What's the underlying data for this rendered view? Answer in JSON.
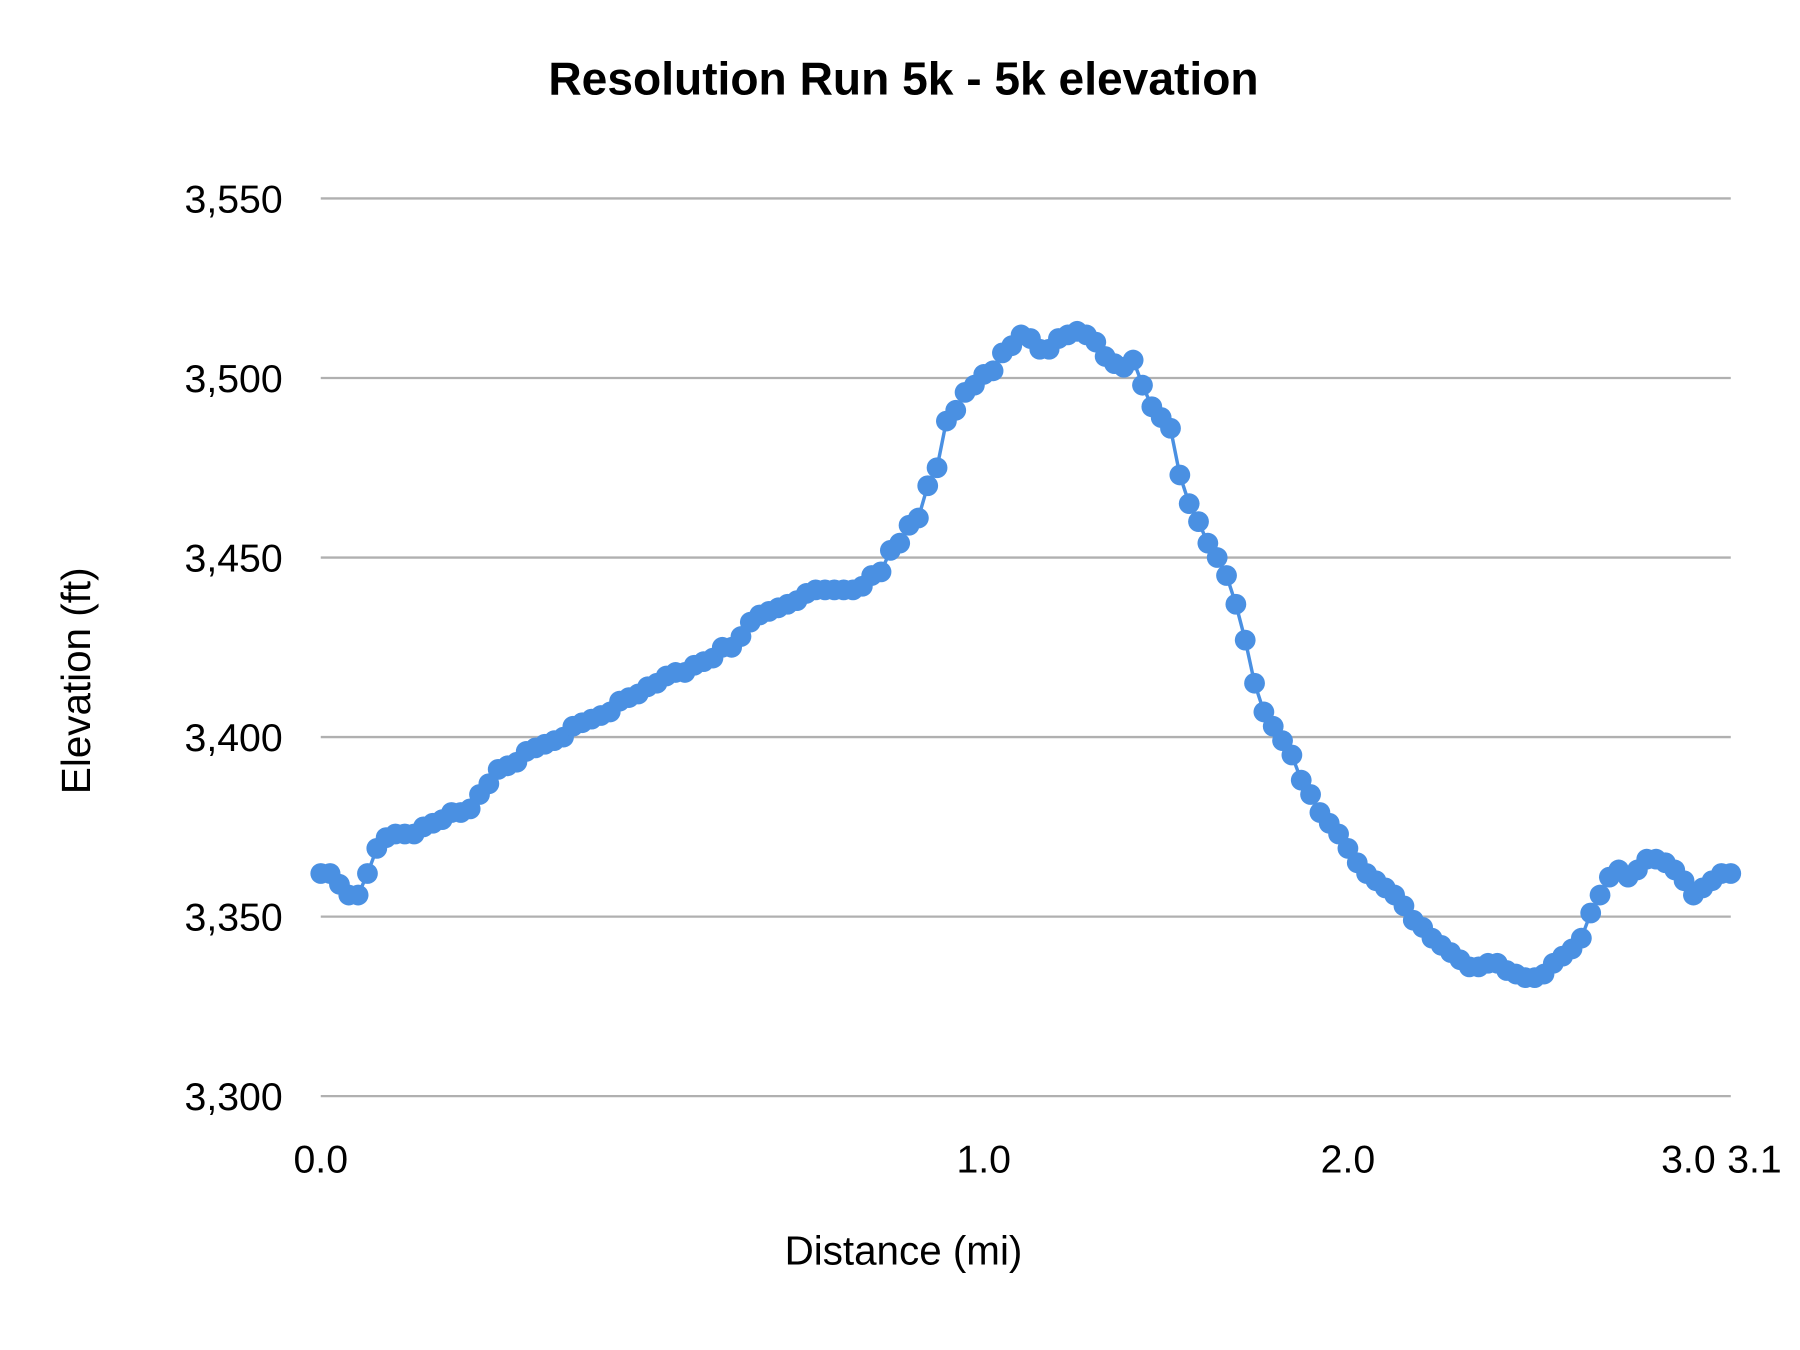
{
  "chart_data": {
    "type": "line",
    "title": "Resolution Run 5k - 5k elevation",
    "xlabel": "Distance (mi)",
    "ylabel": "Elevation (ft)",
    "ylim": [
      3300,
      3550
    ],
    "y_ticks": [
      "3,300",
      "3,350",
      "3,400",
      "3,450",
      "3,500",
      "3,550"
    ],
    "y_tick_values": [
      3300,
      3350,
      3400,
      3450,
      3500,
      3550
    ],
    "x_axis": "category",
    "x_ticks": [
      {
        "label": "0.0",
        "point_index": 0
      },
      {
        "label": "1.0",
        "point_index": 71
      },
      {
        "label": "2.0",
        "point_index": 110
      },
      {
        "label": "3.0",
        "point_index": 149
      },
      {
        "label": "3.1",
        "point_index": 151
      }
    ],
    "grid": true,
    "markers": true,
    "series_color": "#4a90e2",
    "grid_color": "#b0b0b0",
    "elevations": [
      3362,
      3362,
      3359,
      3356,
      3356,
      3362,
      3369,
      3372,
      3373,
      3373,
      3373,
      3375,
      3376,
      3377,
      3379,
      3379,
      3380,
      3384,
      3387,
      3391,
      3392,
      3393,
      3396,
      3397,
      3398,
      3399,
      3400,
      3403,
      3404,
      3405,
      3406,
      3407,
      3410,
      3411,
      3412,
      3414,
      3415,
      3417,
      3418,
      3418,
      3420,
      3421,
      3422,
      3425,
      3425,
      3428,
      3432,
      3434,
      3435,
      3436,
      3437,
      3438,
      3440,
      3441,
      3441,
      3441,
      3441,
      3441,
      3442,
      3445,
      3446,
      3452,
      3454,
      3459,
      3461,
      3470,
      3475,
      3488,
      3491,
      3496,
      3498,
      3501,
      3502,
      3507,
      3509,
      3512,
      3511,
      3508,
      3508,
      3511,
      3512,
      3513,
      3512,
      3510,
      3506,
      3504,
      3503,
      3505,
      3498,
      3492,
      3489,
      3486,
      3473,
      3465,
      3460,
      3454,
      3450,
      3445,
      3437,
      3427,
      3415,
      3407,
      3403,
      3399,
      3395,
      3388,
      3384,
      3379,
      3376,
      3373,
      3369,
      3365,
      3362,
      3360,
      3358,
      3356,
      3353,
      3349,
      3347,
      3344,
      3342,
      3340,
      3338,
      3336,
      3336,
      3337,
      3337,
      3335,
      3334,
      3333,
      3333,
      3334,
      3337,
      3339,
      3341,
      3344,
      3351,
      3356,
      3361,
      3363,
      3361,
      3363,
      3366,
      3366,
      3365,
      3363,
      3360,
      3356,
      3358,
      3360,
      3362,
      3362
    ]
  }
}
